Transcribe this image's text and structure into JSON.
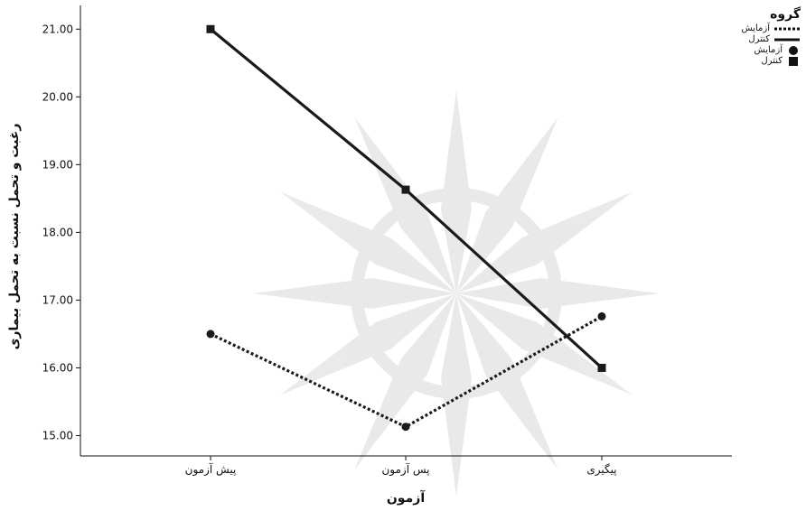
{
  "chart_data": {
    "type": "line",
    "categories": [
      "پیش آزمون",
      "پس آزمون",
      "پیگیری"
    ],
    "series": [
      {
        "name": "آزمایش",
        "values": [
          16.5,
          15.13,
          16.76
        ],
        "line": "dotted",
        "marker": "circle",
        "color": "#1a1a1a"
      },
      {
        "name": "کنترل",
        "values": [
          21.0,
          18.63,
          16.0
        ],
        "line": "solid",
        "marker": "square",
        "color": "#1a1a1a"
      }
    ],
    "xlabel": "آزمون",
    "ylabel": "رغبت و تحمل نسبت به تحمل بیماری",
    "ylim": [
      14.7,
      21.35
    ],
    "yticks": [
      "15.00",
      "16.00",
      "17.00",
      "18.00",
      "19.00",
      "20.00",
      "21.00"
    ],
    "grid": false,
    "legend": {
      "title": "گروه",
      "placement": "top-right",
      "line_entries": [
        "آزمایش",
        "کنترل"
      ],
      "marker_entries": [
        "آزمایش",
        "کنترل"
      ]
    }
  }
}
